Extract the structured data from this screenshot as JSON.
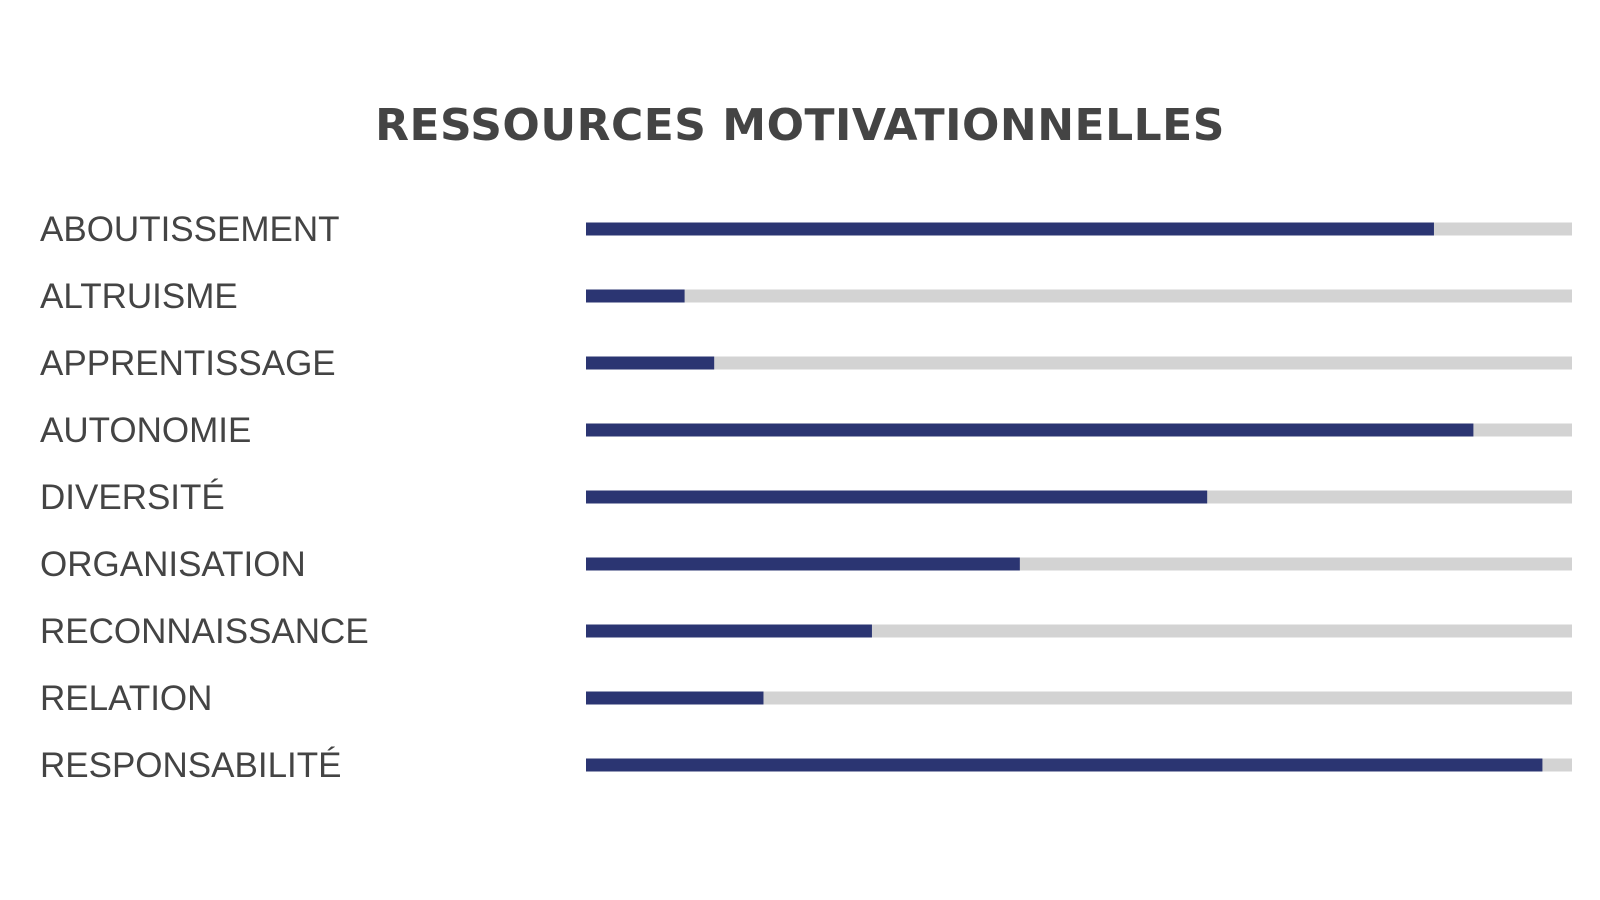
{
  "chart_data": {
    "type": "bar",
    "title": "RESSOURCES MOTIVATIONNELLES",
    "orientation": "horizontal",
    "categories": [
      "ABOUTISSEMENT",
      "ALTRUISME",
      "APPRENTISSAGE",
      "AUTONOMIE",
      "DIVERSITÉ",
      "ORGANISATION",
      "RECONNAISSANCE",
      "RELATION",
      "RESPONSABILITÉ"
    ],
    "values": [
      86,
      10,
      13,
      90,
      63,
      44,
      29,
      18,
      97
    ],
    "xlim": [
      0,
      100
    ],
    "grid": false,
    "legend": "none",
    "colors": {
      "fill": "#2b3572",
      "track": "#d3d3d3",
      "text": "#444444"
    }
  }
}
